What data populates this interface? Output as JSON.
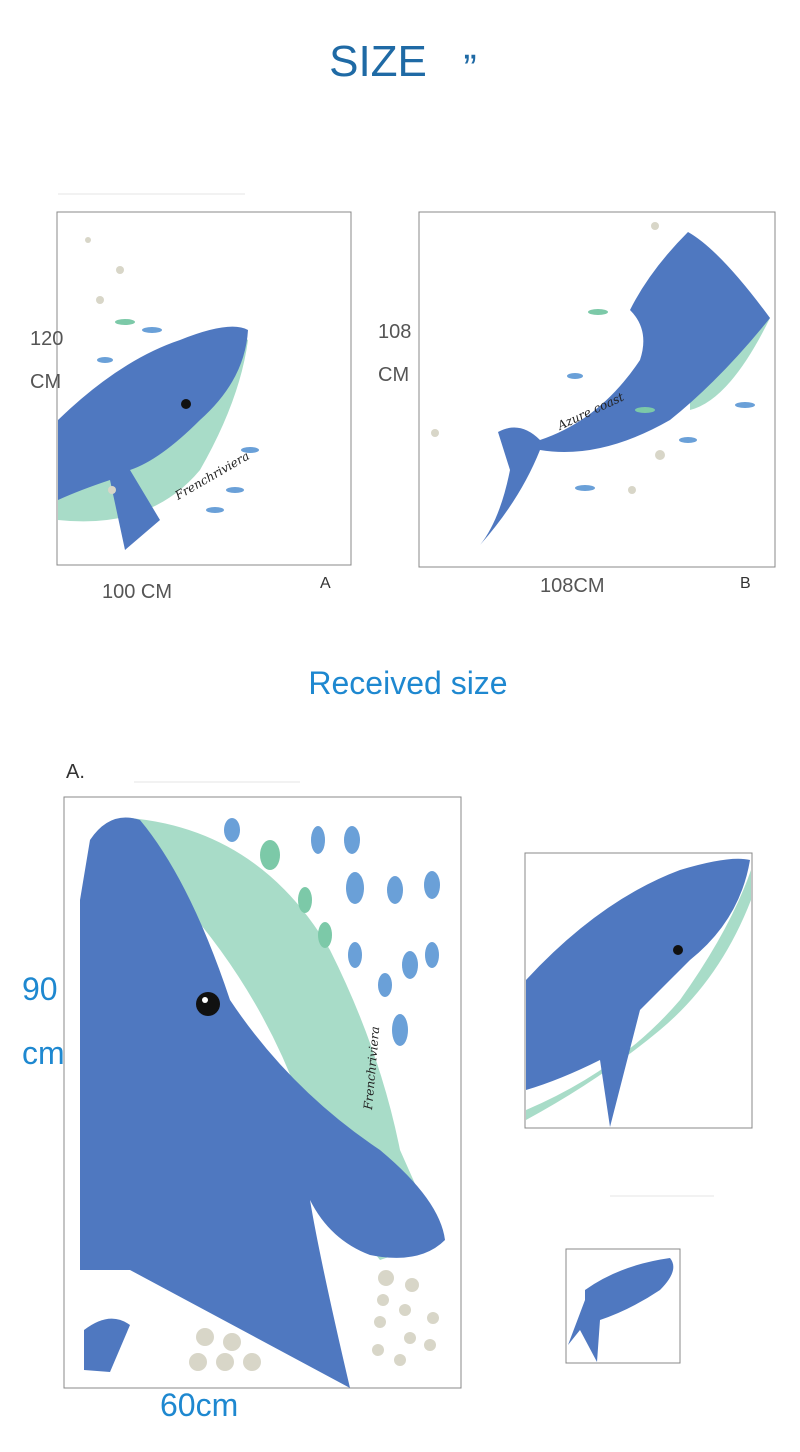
{
  "header": {
    "title": "SIZE",
    "quote": "”"
  },
  "panels": [
    {
      "height": "120",
      "height_unit": "CM",
      "width": "100 CM",
      "label": "A",
      "script": "Frenchriviera"
    },
    {
      "height": "108",
      "height_unit": "CM",
      "width": "108CM",
      "label": "B",
      "script": "Azure coast"
    }
  ],
  "received": {
    "title": "Received size",
    "label": "A.",
    "height": "90",
    "height_unit": "cm",
    "width": "60cm",
    "script": "Frenchriviera"
  }
}
